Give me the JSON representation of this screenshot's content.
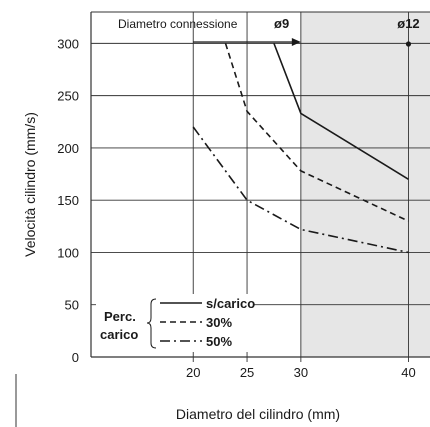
{
  "chart_data": {
    "type": "line",
    "xlabel": "Diametro del cilindro (mm)",
    "ylabel": "Velocità cilindro  (mm/s)",
    "xlim": [
      10.5,
      42
    ],
    "ylim": [
      0,
      330
    ],
    "xticks": [
      20,
      25,
      30,
      40
    ],
    "yticks": [
      0,
      50,
      100,
      150,
      200,
      250,
      300
    ],
    "grid": true,
    "series": [
      {
        "name": "s/carico",
        "style": "solid",
        "x": [
          27.5,
          30,
          40
        ],
        "y": [
          300,
          233,
          170
        ]
      },
      {
        "name": "30%",
        "style": "dashed",
        "x": [
          23,
          25,
          30,
          40
        ],
        "y": [
          300,
          235,
          178,
          130
        ]
      },
      {
        "name": "50%",
        "style": "dashdot",
        "x": [
          20,
          25,
          30,
          40
        ],
        "y": [
          220,
          150,
          122,
          100
        ]
      }
    ],
    "legend": {
      "group_label_line1": "Perc.",
      "group_label_line2": "carico",
      "entries": [
        "s/carico",
        "30%",
        "50%"
      ]
    },
    "annotations": {
      "connection_label": "Diametro connessione",
      "connection_9": "ø9",
      "connection_12": "ø12"
    }
  },
  "colors": {
    "line": "#1a1a1a",
    "grid": "#333333",
    "shade": "#e6e6e6",
    "background": "#ffffff"
  }
}
